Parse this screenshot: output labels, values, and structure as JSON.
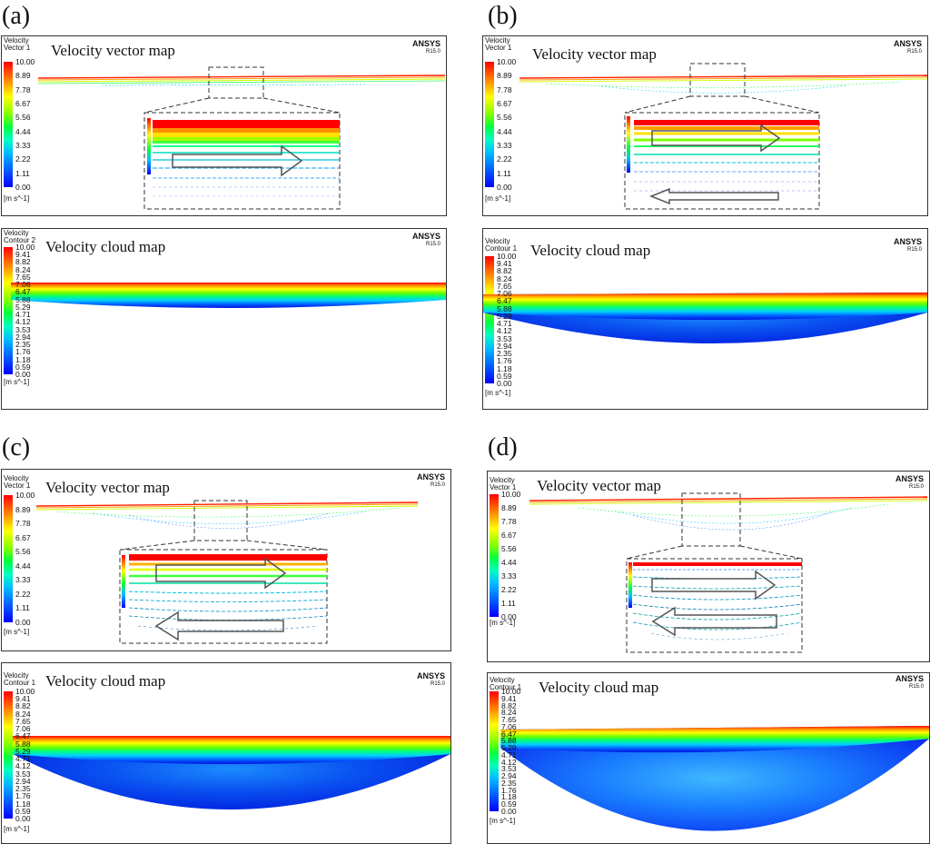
{
  "panels": [
    {
      "id": "a",
      "label": "(a)",
      "vector_title": "Velocity vector map",
      "cloud_title": "Velocity cloud map",
      "vector_legend": "Velocity\nVector 1",
      "cloud_legend": "Velocity\nContour 2"
    },
    {
      "id": "b",
      "label": "(b)",
      "vector_title": "Velocity vector map",
      "cloud_title": "Velocity cloud map",
      "vector_legend": "Velocity\nVector 1",
      "cloud_legend": "Velocity\nContour 1"
    },
    {
      "id": "c",
      "label": "(c)",
      "vector_title": "Velocity vector map",
      "cloud_title": "Velocity cloud map",
      "vector_legend": "Velocity\nVector 1",
      "cloud_legend": "Velocity\nContour 1"
    },
    {
      "id": "d",
      "label": "(d)",
      "vector_title": "Velocity vector map",
      "cloud_title": "Velocity cloud map",
      "vector_legend": "Velocity\nVector 1",
      "cloud_legend": "Velocity\nContour 1"
    }
  ],
  "vector_ticks": [
    "10.00",
    "8.89",
    "7.78",
    "6.67",
    "5.56",
    "4.44",
    "3.33",
    "2.22",
    "1.11",
    "0.00"
  ],
  "contour_ticks": [
    "10.00",
    "9.41",
    "8.82",
    "8.24",
    "7.65",
    "7.06",
    "6.47",
    "5.88",
    "5.29",
    "4.71",
    "4.12",
    "3.53",
    "2.94",
    "2.35",
    "1.76",
    "1.18",
    "0.59",
    "0.00"
  ],
  "unit": "[m s^-1]",
  "brand": "ANSYS",
  "version": "R15.0",
  "colors": {
    "max": "#ff0000",
    "mid": "#00ff40",
    "min": "#0000ff"
  }
}
